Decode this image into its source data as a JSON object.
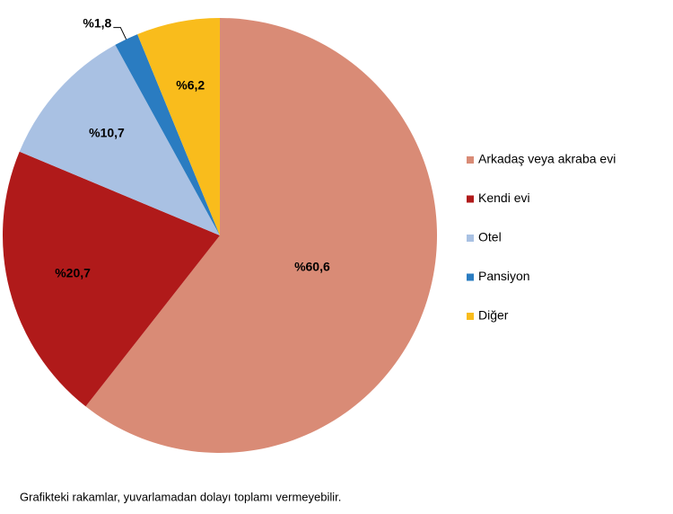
{
  "chart_data": {
    "type": "pie",
    "categories": [
      "Arkadaş veya akraba evi",
      "Kendi evi",
      "Otel",
      "Pansiyon",
      "Diğer"
    ],
    "values": [
      60.6,
      20.7,
      10.7,
      1.8,
      6.2
    ],
    "value_labels": [
      "%60,6",
      "%20,7",
      "%10,7",
      "%1,8",
      "%6,2"
    ],
    "colors": [
      "#d98b76",
      "#b01a1a",
      "#a9c1e3",
      "#2a7cc1",
      "#f9bc1c"
    ],
    "legend": "right",
    "note": "Grafikteki rakamlar, yuvarlamadan dolayı toplamı vermeyebilir."
  }
}
